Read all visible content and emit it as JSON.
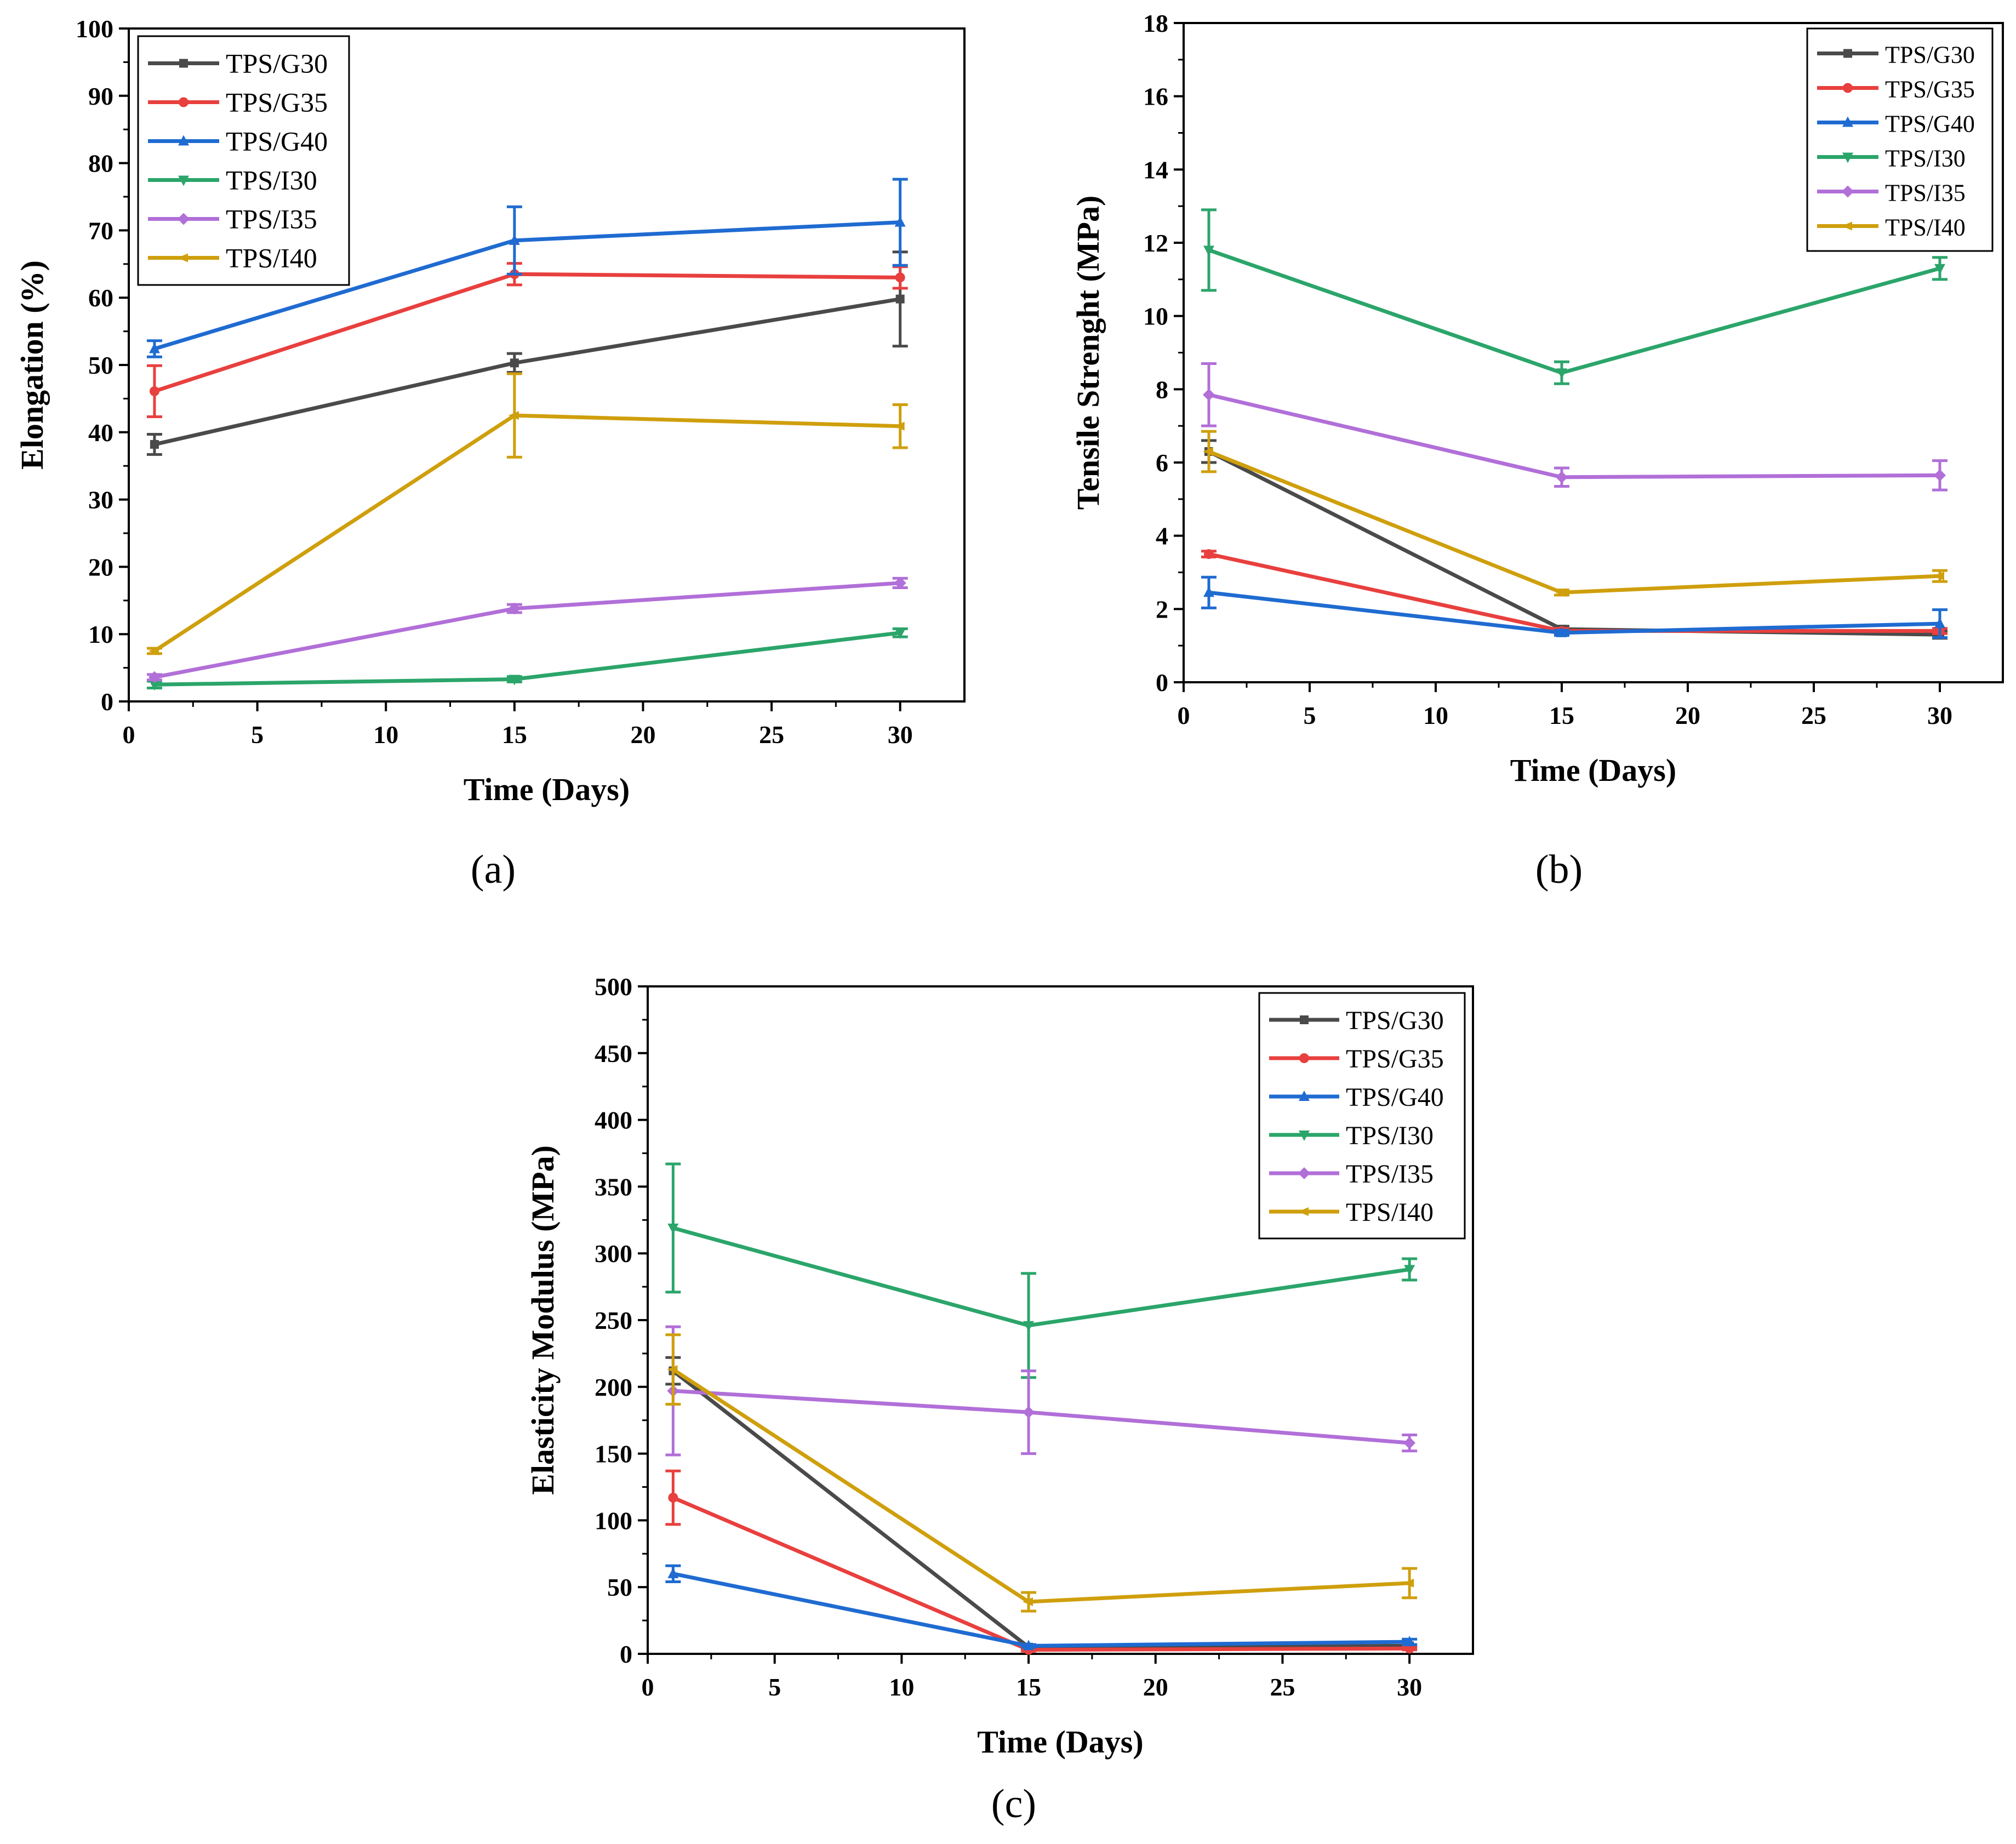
{
  "figure": {
    "captions": [
      "(a)",
      "(b)",
      "(c)"
    ]
  },
  "colors": {
    "TPS/G30": "#4a4a4a",
    "TPS/G35": "#e8403e",
    "TPS/G40": "#1f6bd1",
    "TPS/I30": "#2ba56a",
    "TPS/I35": "#b16fd8",
    "TPS/I40": "#cf9f0c"
  },
  "chart_data": [
    {
      "type": "line",
      "panel": "(a)",
      "title": "",
      "xlabel": "Time (Days)",
      "ylabel": "Elongation (%)",
      "xlim": [
        0,
        32.5
      ],
      "ylim": [
        0,
        100
      ],
      "xticks": [
        0,
        5,
        10,
        15,
        20,
        25,
        30
      ],
      "yticks": [
        0,
        10,
        20,
        30,
        40,
        50,
        60,
        70,
        80,
        90,
        100
      ],
      "legend_position": "top-left",
      "x": [
        1,
        15,
        30
      ],
      "series": [
        {
          "name": "TPS/G30",
          "values": [
            38.2,
            50.3,
            59.8
          ],
          "errors": [
            1.5,
            1.4,
            7.0
          ]
        },
        {
          "name": "TPS/G35",
          "values": [
            46.1,
            63.5,
            63.0
          ],
          "errors": [
            3.8,
            1.6,
            1.6
          ]
        },
        {
          "name": "TPS/G40",
          "values": [
            52.4,
            68.5,
            71.2
          ],
          "errors": [
            1.2,
            5.0,
            6.4
          ]
        },
        {
          "name": "TPS/I30",
          "values": [
            2.5,
            3.3,
            10.2
          ],
          "errors": [
            0.5,
            0.4,
            0.6
          ]
        },
        {
          "name": "TPS/I35",
          "values": [
            3.6,
            13.8,
            17.6
          ],
          "errors": [
            0.4,
            0.6,
            0.7
          ]
        },
        {
          "name": "TPS/I40",
          "values": [
            7.5,
            42.5,
            40.9
          ],
          "errors": [
            0.4,
            6.2,
            3.2
          ]
        }
      ]
    },
    {
      "type": "line",
      "panel": "(b)",
      "title": "",
      "xlabel": "Time (Days)",
      "ylabel": "Tensile Strenght (MPa)",
      "xlim": [
        0,
        32.5
      ],
      "ylim": [
        0,
        18
      ],
      "xticks": [
        0,
        5,
        10,
        15,
        20,
        25,
        30
      ],
      "yticks": [
        0,
        2,
        4,
        6,
        8,
        10,
        12,
        14,
        16,
        18
      ],
      "legend_position": "top-right",
      "x": [
        1,
        15,
        30
      ],
      "series": [
        {
          "name": "TPS/G30",
          "values": [
            6.3,
            1.45,
            1.3
          ],
          "errors": [
            0.3,
            0.08,
            0.1
          ]
        },
        {
          "name": "TPS/G35",
          "values": [
            3.5,
            1.4,
            1.4
          ],
          "errors": [
            0.08,
            0.07,
            0.07
          ]
        },
        {
          "name": "TPS/G40",
          "values": [
            2.45,
            1.35,
            1.6
          ],
          "errors": [
            0.42,
            0.07,
            0.38
          ]
        },
        {
          "name": "TPS/I30",
          "values": [
            11.8,
            8.45,
            11.3
          ],
          "errors": [
            1.1,
            0.3,
            0.3
          ]
        },
        {
          "name": "TPS/I35",
          "values": [
            7.85,
            5.6,
            5.65
          ],
          "errors": [
            0.85,
            0.25,
            0.4
          ]
        },
        {
          "name": "TPS/I40",
          "values": [
            6.3,
            2.45,
            2.9
          ],
          "errors": [
            0.55,
            0.07,
            0.15
          ]
        }
      ]
    },
    {
      "type": "line",
      "panel": "(c)",
      "title": "",
      "xlabel": "Time (Days)",
      "ylabel": "Elasticity Modulus (MPa)",
      "xlim": [
        0,
        32.5
      ],
      "ylim": [
        0,
        500
      ],
      "xticks": [
        0,
        5,
        10,
        15,
        20,
        25,
        30
      ],
      "yticks": [
        0,
        50,
        100,
        150,
        200,
        250,
        300,
        350,
        400,
        450,
        500
      ],
      "legend_position": "top-right",
      "x": [
        1,
        15,
        30
      ],
      "series": [
        {
          "name": "TPS/G30",
          "values": [
            212,
            5,
            6
          ],
          "errors": [
            10,
            1,
            1
          ]
        },
        {
          "name": "TPS/G35",
          "values": [
            117,
            3,
            4
          ],
          "errors": [
            20,
            1,
            1
          ]
        },
        {
          "name": "TPS/G40",
          "values": [
            60,
            6,
            9
          ],
          "errors": [
            6,
            1,
            2
          ]
        },
        {
          "name": "TPS/I30",
          "values": [
            319,
            246,
            288
          ],
          "errors": [
            48,
            39,
            8
          ]
        },
        {
          "name": "TPS/I35",
          "values": [
            197,
            181,
            158
          ],
          "errors": [
            48,
            31,
            6
          ]
        },
        {
          "name": "TPS/I40",
          "values": [
            213,
            39,
            53
          ],
          "errors": [
            26,
            7,
            11
          ]
        }
      ]
    }
  ]
}
